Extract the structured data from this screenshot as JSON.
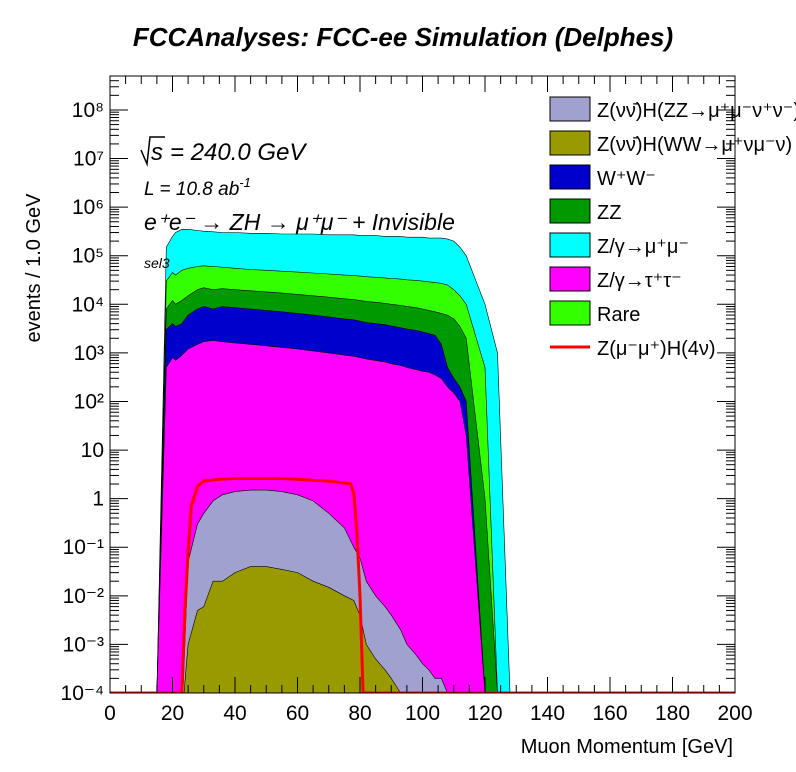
{
  "title": "FCCAnalyses: FCC-ee Simulation (Delphes)",
  "annotations": {
    "sqrt_s": "240.0 GeV",
    "sqrt_s_prefix": "s",
    "lumi_prefix": "L = 10.8 ab",
    "lumi_exp": "-1",
    "process": "e⁺e⁻ → ZH → μ⁺μ⁻ + Invisible",
    "selection": "sel3"
  },
  "chart_data": {
    "type": "area",
    "title": "FCCAnalyses: FCC-ee Simulation (Delphes)",
    "xlabel": "Muon Momentum [GeV]",
    "ylabel": "events / 1.0 GeV",
    "xlim": [
      0,
      200
    ],
    "ylim": [
      0.0001,
      500000000
    ],
    "yscale": "log",
    "stacked": true,
    "x_ticks": [
      0,
      20,
      40,
      60,
      80,
      100,
      120,
      140,
      160,
      180,
      200
    ],
    "y_ticks": [
      {
        "value": 0.0001,
        "label": "10⁻⁴"
      },
      {
        "value": 0.001,
        "label": "10⁻³"
      },
      {
        "value": 0.01,
        "label": "10⁻²"
      },
      {
        "value": 0.1,
        "label": "10⁻¹"
      },
      {
        "value": 1,
        "label": "1"
      },
      {
        "value": 10,
        "label": "10"
      },
      {
        "value": 100,
        "label": "10²"
      },
      {
        "value": 1000,
        "label": "10³"
      },
      {
        "value": 10000,
        "label": "10⁴"
      },
      {
        "value": 100000,
        "label": "10⁵"
      },
      {
        "value": 1000000,
        "label": "10⁶"
      },
      {
        "value": 10000000,
        "label": "10⁷"
      },
      {
        "value": 100000000,
        "label": "10⁸"
      }
    ],
    "legend_position": "top-right",
    "note": "stacked cumulative levels (events per 1 GeV bin) at representative muon momenta",
    "series": [
      {
        "name": "Z(νν̄)H(ZZ→μ⁺μ⁻ν⁺ν⁻)",
        "color": "#a1a1cf",
        "points": [
          [
            15,
            0.0001
          ],
          [
            18,
            0.0001
          ],
          [
            20,
            0.0001
          ],
          [
            21,
            0.0001
          ],
          [
            23,
            3e-05
          ],
          [
            25,
            0.05
          ],
          [
            28,
            0.3
          ],
          [
            30,
            0.5
          ],
          [
            33,
            0.9
          ],
          [
            36,
            1.2
          ],
          [
            40,
            1.4
          ],
          [
            45,
            1.5
          ],
          [
            50,
            1.5
          ],
          [
            55,
            1.4
          ],
          [
            60,
            1.2
          ],
          [
            65,
            0.9
          ],
          [
            70,
            0.5
          ],
          [
            75,
            0.25
          ],
          [
            78,
            0.1
          ],
          [
            80,
            0.06
          ],
          [
            82,
            0.02
          ],
          [
            85,
            0.01
          ],
          [
            88,
            0.006
          ],
          [
            90,
            0.004
          ],
          [
            93,
            0.002
          ],
          [
            95,
            0.001
          ],
          [
            98,
            0.0006
          ],
          [
            100,
            0.0004
          ],
          [
            102,
            0.0003
          ],
          [
            104,
            0.0002
          ],
          [
            106,
            0.0002
          ],
          [
            108,
            0.0001
          ],
          [
            110,
            0.0001
          ],
          [
            112,
            0.0001
          ],
          [
            114,
            0.0001
          ],
          [
            120,
            0.0001
          ],
          [
            124,
            0.0001
          ],
          [
            128,
            0.0001
          ]
        ]
      },
      {
        "name": "Z(νν̄)H(WW→μ⁺νμ⁻ν)",
        "color": "#999900",
        "points": [
          [
            15,
            0.0001
          ],
          [
            18,
            0.0001
          ],
          [
            20,
            0.0001
          ],
          [
            21,
            0.0001
          ],
          [
            23,
            3e-05
          ],
          [
            25,
            0.001
          ],
          [
            28,
            0.005
          ],
          [
            30,
            0.006
          ],
          [
            33,
            0.02
          ],
          [
            36,
            0.02
          ],
          [
            40,
            0.03
          ],
          [
            45,
            0.04
          ],
          [
            50,
            0.04
          ],
          [
            55,
            0.035
          ],
          [
            60,
            0.03
          ],
          [
            65,
            0.02
          ],
          [
            70,
            0.015
          ],
          [
            75,
            0.01
          ],
          [
            78,
            0.008
          ],
          [
            80,
            0.004
          ],
          [
            82,
            0.001
          ],
          [
            85,
            0.0005
          ],
          [
            88,
            0.0003
          ],
          [
            90,
            0.0002
          ],
          [
            93,
            0.0001
          ],
          [
            95,
            0.0001
          ],
          [
            98,
            0.0001
          ],
          [
            100,
            0.0001
          ],
          [
            102,
            0.0001
          ],
          [
            104,
            0.0001
          ],
          [
            106,
            0.0001
          ],
          [
            108,
            0.0001
          ],
          [
            110,
            0.0001
          ],
          [
            112,
            0.0001
          ],
          [
            114,
            0.0001
          ],
          [
            120,
            0.0001
          ],
          [
            124,
            0.0001
          ],
          [
            128,
            0.0001
          ]
        ]
      },
      {
        "name": "W⁺W⁻",
        "color": "#0000cc",
        "points": [
          [
            15,
            0.0001
          ],
          [
            18,
            3000
          ],
          [
            20,
            4000
          ],
          [
            21,
            3500
          ],
          [
            23,
            4000
          ],
          [
            25,
            6000
          ],
          [
            28,
            8000
          ],
          [
            30,
            9000
          ],
          [
            33,
            8000
          ],
          [
            36,
            9000
          ],
          [
            40,
            8500
          ],
          [
            45,
            8000
          ],
          [
            50,
            7500
          ],
          [
            55,
            7000
          ],
          [
            60,
            6500
          ],
          [
            65,
            6000
          ],
          [
            70,
            5500
          ],
          [
            75,
            5000
          ],
          [
            78,
            4800
          ],
          [
            80,
            4500
          ],
          [
            82,
            4200
          ],
          [
            85,
            4000
          ],
          [
            88,
            3800
          ],
          [
            90,
            3600
          ],
          [
            93,
            3300
          ],
          [
            95,
            3100
          ],
          [
            98,
            2900
          ],
          [
            100,
            2700
          ],
          [
            102,
            2500
          ],
          [
            104,
            2300
          ],
          [
            106,
            1500
          ],
          [
            108,
            500
          ],
          [
            110,
            300
          ],
          [
            112,
            200
          ],
          [
            114,
            100
          ],
          [
            120,
            0.0001
          ],
          [
            124,
            0.0001
          ],
          [
            128,
            0.0001
          ]
        ]
      },
      {
        "name": "ZZ",
        "color": "#009900",
        "points": [
          [
            15,
            0.0001
          ],
          [
            18,
            8000
          ],
          [
            20,
            12000
          ],
          [
            21,
            10000
          ],
          [
            23,
            12000
          ],
          [
            25,
            15000
          ],
          [
            28,
            20000
          ],
          [
            30,
            22000
          ],
          [
            33,
            20000
          ],
          [
            36,
            21000
          ],
          [
            40,
            20000
          ],
          [
            45,
            19000
          ],
          [
            50,
            18000
          ],
          [
            55,
            17000
          ],
          [
            60,
            16000
          ],
          [
            65,
            15000
          ],
          [
            70,
            14000
          ],
          [
            75,
            13000
          ],
          [
            78,
            12500
          ],
          [
            80,
            12000
          ],
          [
            82,
            11500
          ],
          [
            85,
            11000
          ],
          [
            88,
            10500
          ],
          [
            90,
            10000
          ],
          [
            93,
            9500
          ],
          [
            95,
            9000
          ],
          [
            98,
            8500
          ],
          [
            100,
            8000
          ],
          [
            102,
            7500
          ],
          [
            104,
            7000
          ],
          [
            106,
            6500
          ],
          [
            108,
            6000
          ],
          [
            110,
            5000
          ],
          [
            112,
            3500
          ],
          [
            114,
            2000
          ],
          [
            120,
            1
          ],
          [
            124,
            0.0001
          ],
          [
            128,
            0.0001
          ]
        ]
      },
      {
        "name": "Z/γ→μ⁺μ⁻",
        "color": "#00ffff",
        "points": [
          [
            15,
            0.0001
          ],
          [
            18,
            150000
          ],
          [
            20,
            250000
          ],
          [
            21,
            300000
          ],
          [
            23,
            350000
          ],
          [
            25,
            350000
          ],
          [
            28,
            330000
          ],
          [
            30,
            320000
          ],
          [
            33,
            310000
          ],
          [
            36,
            300000
          ],
          [
            40,
            300000
          ],
          [
            45,
            290000
          ],
          [
            50,
            290000
          ],
          [
            55,
            280000
          ],
          [
            60,
            280000
          ],
          [
            65,
            280000
          ],
          [
            70,
            270000
          ],
          [
            75,
            270000
          ],
          [
            78,
            270000
          ],
          [
            80,
            260000
          ],
          [
            82,
            260000
          ],
          [
            85,
            260000
          ],
          [
            88,
            250000
          ],
          [
            90,
            250000
          ],
          [
            93,
            250000
          ],
          [
            95,
            240000
          ],
          [
            98,
            240000
          ],
          [
            100,
            240000
          ],
          [
            102,
            230000
          ],
          [
            104,
            230000
          ],
          [
            106,
            230000
          ],
          [
            108,
            220000
          ],
          [
            110,
            200000
          ],
          [
            112,
            150000
          ],
          [
            114,
            100000
          ],
          [
            120,
            10000
          ],
          [
            124,
            1000
          ],
          [
            128,
            0.0001
          ]
        ]
      },
      {
        "name": "Z/γ→τ⁺τ⁻",
        "color": "#ff00ff",
        "points": [
          [
            15,
            0.0001
          ],
          [
            18,
            500
          ],
          [
            20,
            800
          ],
          [
            21,
            700
          ],
          [
            23,
            900
          ],
          [
            25,
            1200
          ],
          [
            28,
            1500
          ],
          [
            30,
            1700
          ],
          [
            33,
            1800
          ],
          [
            36,
            1700
          ],
          [
            40,
            1600
          ],
          [
            45,
            1500
          ],
          [
            50,
            1400
          ],
          [
            55,
            1300
          ],
          [
            60,
            1200
          ],
          [
            65,
            1100
          ],
          [
            70,
            1000
          ],
          [
            75,
            900
          ],
          [
            78,
            850
          ],
          [
            80,
            800
          ],
          [
            82,
            750
          ],
          [
            85,
            700
          ],
          [
            88,
            650
          ],
          [
            90,
            600
          ],
          [
            93,
            550
          ],
          [
            95,
            500
          ],
          [
            98,
            450
          ],
          [
            100,
            420
          ],
          [
            102,
            400
          ],
          [
            104,
            350
          ],
          [
            106,
            300
          ],
          [
            108,
            200
          ],
          [
            110,
            150
          ],
          [
            112,
            100
          ],
          [
            114,
            20
          ],
          [
            120,
            0.0001
          ],
          [
            124,
            0.0001
          ],
          [
            128,
            0.0001
          ]
        ]
      },
      {
        "name": "Rare",
        "color": "#33ff00",
        "points": [
          [
            15,
            0.0001
          ],
          [
            18,
            30000
          ],
          [
            20,
            45000
          ],
          [
            21,
            40000
          ],
          [
            23,
            50000
          ],
          [
            25,
            55000
          ],
          [
            28,
            60000
          ],
          [
            30,
            62000
          ],
          [
            33,
            60000
          ],
          [
            36,
            58000
          ],
          [
            40,
            55000
          ],
          [
            45,
            52000
          ],
          [
            50,
            50000
          ],
          [
            55,
            48000
          ],
          [
            60,
            46000
          ],
          [
            65,
            44000
          ],
          [
            70,
            42000
          ],
          [
            75,
            40000
          ],
          [
            78,
            39000
          ],
          [
            80,
            38000
          ],
          [
            82,
            37000
          ],
          [
            85,
            36000
          ],
          [
            88,
            35000
          ],
          [
            90,
            34000
          ],
          [
            93,
            33000
          ],
          [
            95,
            32000
          ],
          [
            98,
            31000
          ],
          [
            100,
            30000
          ],
          [
            102,
            29000
          ],
          [
            104,
            28000
          ],
          [
            106,
            27000
          ],
          [
            108,
            25000
          ],
          [
            110,
            20000
          ],
          [
            112,
            15000
          ],
          [
            114,
            10000
          ],
          [
            120,
            500
          ],
          [
            124,
            0.0001
          ],
          [
            128,
            0.0001
          ]
        ]
      },
      {
        "name": "Z(μ⁻μ⁺)H(4ν)",
        "color": "#ff0000",
        "line": true,
        "points": [
          [
            0,
            0.0001
          ],
          [
            23,
            0.0001
          ],
          [
            24,
            0.005
          ],
          [
            25,
            0.08
          ],
          [
            26,
            0.7
          ],
          [
            28,
            1.8
          ],
          [
            30,
            2.3
          ],
          [
            35,
            2.5
          ],
          [
            40,
            2.6
          ],
          [
            45,
            2.6
          ],
          [
            50,
            2.6
          ],
          [
            55,
            2.6
          ],
          [
            60,
            2.5
          ],
          [
            65,
            2.4
          ],
          [
            70,
            2.3
          ],
          [
            75,
            2.1
          ],
          [
            77,
            2.0
          ],
          [
            78,
            1.3
          ],
          [
            79,
            0.2
          ],
          [
            80,
            0.01
          ],
          [
            81,
            0.0001
          ],
          [
            200,
            0.0001
          ]
        ]
      }
    ]
  }
}
